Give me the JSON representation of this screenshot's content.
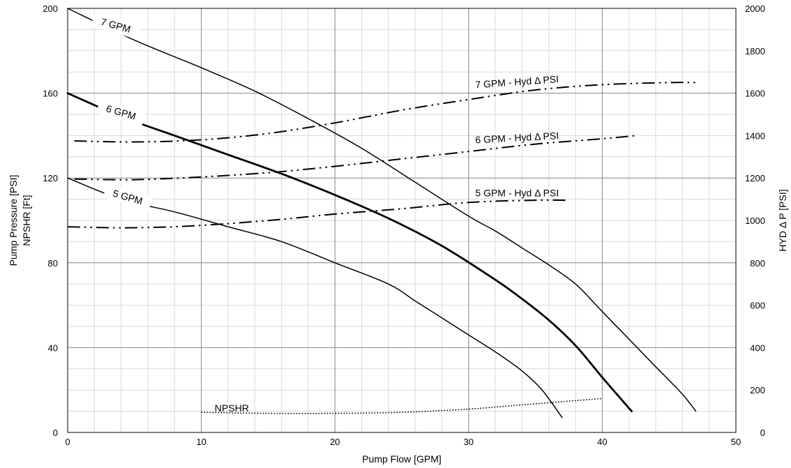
{
  "chart_data": {
    "type": "line",
    "title": "",
    "xlabel": "Pump Flow [GPM]",
    "ylabel_left": [
      "Pump Pressure [PSI]",
      "NPSHR [Ft]"
    ],
    "ylabel_right": "HYD Δ P [PSI]",
    "xlim": [
      0,
      50
    ],
    "ylim_left": [
      0,
      200
    ],
    "ylim_right": [
      0,
      2000
    ],
    "x_ticks": [
      0,
      10,
      20,
      30,
      40,
      50
    ],
    "y_left_ticks": [
      0,
      40,
      80,
      120,
      160,
      200
    ],
    "y_right_ticks": [
      0,
      200,
      400,
      600,
      800,
      1000,
      1200,
      1400,
      1600,
      1800,
      2000
    ],
    "grid": true,
    "series": [
      {
        "name": "7 GPM",
        "axis": "left",
        "style": "solid",
        "points": [
          [
            0,
            200
          ],
          [
            5,
            185
          ],
          [
            10,
            172
          ],
          [
            14,
            161
          ],
          [
            18,
            148
          ],
          [
            22,
            134
          ],
          [
            26,
            118
          ],
          [
            30,
            102
          ],
          [
            32,
            95
          ],
          [
            34,
            87
          ],
          [
            36,
            79
          ],
          [
            38,
            70
          ],
          [
            40,
            57
          ],
          [
            42,
            44
          ],
          [
            44,
            31
          ],
          [
            46,
            18
          ],
          [
            47,
            10
          ]
        ]
      },
      {
        "name": "6 GPM",
        "axis": "left",
        "style": "solid-bold",
        "points": [
          [
            0,
            160
          ],
          [
            4,
            149
          ],
          [
            8,
            140
          ],
          [
            12,
            131
          ],
          [
            16,
            122
          ],
          [
            20,
            112
          ],
          [
            24,
            101
          ],
          [
            28,
            88
          ],
          [
            32,
            72
          ],
          [
            34,
            63
          ],
          [
            36,
            53
          ],
          [
            38,
            41
          ],
          [
            40,
            26
          ],
          [
            42.2,
            10
          ]
        ]
      },
      {
        "name": "5 GPM",
        "axis": "left",
        "style": "solid",
        "points": [
          [
            0,
            120
          ],
          [
            4,
            110
          ],
          [
            8,
            104
          ],
          [
            12,
            97
          ],
          [
            16,
            90
          ],
          [
            20,
            80
          ],
          [
            24,
            70
          ],
          [
            26,
            62
          ],
          [
            28,
            54
          ],
          [
            30,
            46
          ],
          [
            32,
            38
          ],
          [
            34,
            29
          ],
          [
            35.5,
            20
          ],
          [
            37,
            7
          ]
        ]
      },
      {
        "name": "7 GPM - Hyd Δ PSI",
        "axis": "right",
        "style": "dash-dot-dot",
        "points": [
          [
            0.5,
            1375
          ],
          [
            5,
            1370
          ],
          [
            10,
            1380
          ],
          [
            15,
            1410
          ],
          [
            20,
            1460
          ],
          [
            25,
            1520
          ],
          [
            30,
            1570
          ],
          [
            35,
            1615
          ],
          [
            40,
            1640
          ],
          [
            45,
            1650
          ],
          [
            47,
            1650
          ]
        ]
      },
      {
        "name": "6 GPM - Hyd Δ PSI",
        "axis": "right",
        "style": "dash-dot-dot",
        "points": [
          [
            0.5,
            1195
          ],
          [
            5,
            1192
          ],
          [
            10,
            1205
          ],
          [
            15,
            1225
          ],
          [
            20,
            1255
          ],
          [
            25,
            1290
          ],
          [
            30,
            1325
          ],
          [
            35,
            1360
          ],
          [
            40,
            1385
          ],
          [
            42.5,
            1400
          ]
        ]
      },
      {
        "name": "5 GPM - Hyd Δ PSI",
        "axis": "right",
        "style": "dash-dot-dot",
        "points": [
          [
            0,
            970
          ],
          [
            4,
            965
          ],
          [
            8,
            970
          ],
          [
            12,
            985
          ],
          [
            16,
            1005
          ],
          [
            20,
            1030
          ],
          [
            25,
            1055
          ],
          [
            30,
            1085
          ],
          [
            35,
            1095
          ],
          [
            37.3,
            1095
          ]
        ]
      },
      {
        "name": "NPSHR",
        "axis": "left",
        "style": "dotted",
        "points": [
          [
            10,
            9.5
          ],
          [
            15,
            9
          ],
          [
            20,
            9
          ],
          [
            25,
            9.5
          ],
          [
            30,
            11
          ],
          [
            33,
            12.5
          ],
          [
            36,
            14
          ],
          [
            40,
            16
          ]
        ]
      }
    ],
    "annotations": [
      {
        "text": "7 GPM",
        "x": 3.6,
        "y": 192,
        "axis": "left",
        "rotate": 16
      },
      {
        "text": "6 GPM",
        "x": 4.0,
        "y": 151,
        "axis": "left",
        "rotate": 16
      },
      {
        "text": "5 GPM",
        "x": 4.5,
        "y": 111,
        "axis": "left",
        "rotate": 16
      },
      {
        "text": "7 GPM - Hyd Δ PSI",
        "x": 30.5,
        "y": 1640,
        "axis": "right",
        "rotate": -4
      },
      {
        "text": "6 GPM - Hyd Δ PSI",
        "x": 30.5,
        "y": 1380,
        "axis": "right",
        "rotate": -3
      },
      {
        "text": "5 GPM - Hyd Δ PSI",
        "x": 30.5,
        "y": 1130,
        "axis": "right",
        "rotate": 0
      },
      {
        "text": "NPSHR",
        "x": 11,
        "y": 11.5,
        "axis": "left",
        "rotate": 0
      }
    ]
  }
}
